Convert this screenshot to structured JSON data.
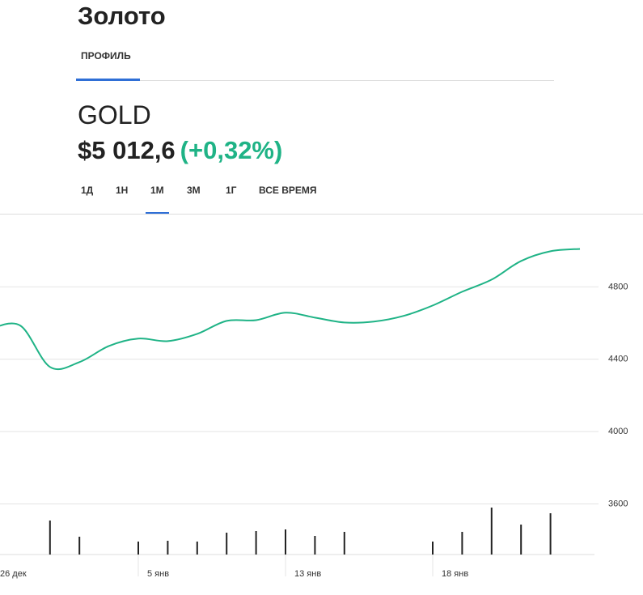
{
  "header": {
    "title": "Золото",
    "tabs": [
      "ПРОФИЛЬ"
    ],
    "ticker": "GOLD",
    "price": "$5 012,6",
    "change": "(+0,32%)",
    "periods": [
      "1Д",
      "1Н",
      "1М",
      "3М",
      "1Г",
      "ВСЕ ВРЕМЯ"
    ],
    "selected_period": 2
  },
  "chart_data": {
    "type": "line",
    "categories": [
      "26 дек",
      null,
      null,
      null,
      null,
      "5 янв",
      null,
      null,
      null,
      null,
      "13 янв",
      null,
      null,
      null,
      null,
      "18 янв",
      null,
      null,
      null,
      null,
      null
    ],
    "series": [
      {
        "color": "#1fb386",
        "values": [
          4570,
          4585,
          4357,
          4384,
          4473,
          4514,
          4500,
          4540,
          4612,
          4616,
          4657,
          4630,
          4603,
          4608,
          4639,
          4697,
          4773,
          4840,
          4943,
          4997,
          5010
        ]
      },
      {
        "type": "bar",
        "axis": "y2",
        "color": "#222222",
        "values": [
          null,
          null,
          42,
          22,
          null,
          16,
          17,
          16,
          27,
          29,
          31,
          23,
          28,
          null,
          null,
          16,
          28,
          58,
          37,
          51,
          null
        ]
      }
    ],
    "ylim": [
      3320,
      5200
    ],
    "yticks": [
      3600,
      4000,
      4400,
      4800
    ],
    "y2lim": [
      0,
      420
    ],
    "grid": true
  }
}
